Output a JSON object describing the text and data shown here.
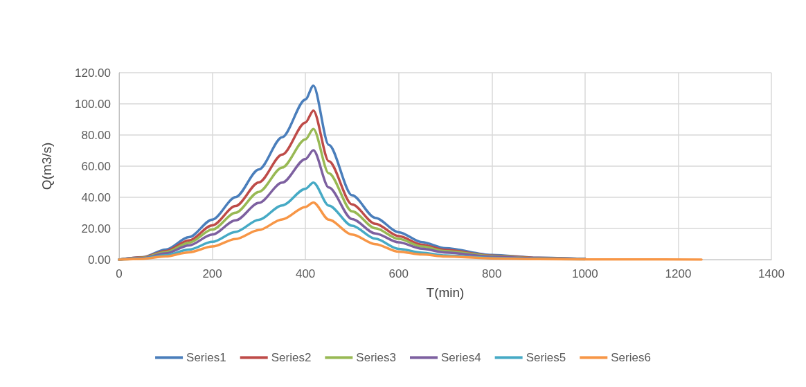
{
  "chart_data": {
    "type": "line",
    "xlabel": "T(min)",
    "ylabel": "Q(m3/s)",
    "x": [
      0,
      50,
      100,
      150,
      200,
      250,
      300,
      350,
      400,
      417,
      450,
      500,
      550,
      600,
      650,
      700,
      800,
      900,
      1000,
      1100,
      1250
    ],
    "series": [
      {
        "name": "Series1",
        "color": "#4a7ebb",
        "values": [
          0,
          1.6,
          6.4,
          14.4,
          25.7,
          40.1,
          57.9,
          78.6,
          102.8,
          111.7,
          73.7,
          41.3,
          26.8,
          17.6,
          11.2,
          7.3,
          3.0,
          1.2,
          0.4,
          null,
          null
        ]
      },
      {
        "name": "Series2",
        "color": "#be4b48",
        "values": [
          0,
          1.4,
          5.5,
          12.3,
          22.0,
          34.4,
          49.6,
          67.4,
          88.0,
          95.7,
          63.2,
          35.4,
          23.0,
          15.1,
          9.6,
          6.2,
          2.6,
          1.1,
          0.4,
          null,
          null
        ]
      },
      {
        "name": "Series3",
        "color": "#98b954",
        "values": [
          0,
          1.2,
          4.8,
          10.8,
          19.3,
          30.1,
          43.5,
          59.1,
          77.2,
          83.9,
          55.4,
          31.0,
          20.1,
          13.3,
          8.4,
          5.5,
          2.3,
          0.9,
          0.3,
          null,
          null
        ]
      },
      {
        "name": "Series4",
        "color": "#7d60a0",
        "values": [
          0,
          1.0,
          4.0,
          9.1,
          16.1,
          25.2,
          36.4,
          49.4,
          64.6,
          70.2,
          46.3,
          26.0,
          16.8,
          11.1,
          7.0,
          4.6,
          1.9,
          0.8,
          0.3,
          null,
          null
        ]
      },
      {
        "name": "Series5",
        "color": "#46aac5",
        "values": [
          0,
          0.7,
          2.8,
          6.4,
          11.4,
          17.8,
          25.6,
          34.8,
          45.5,
          49.5,
          34.7,
          21.8,
          13.4,
          6.9,
          4.5,
          2.7,
          1.1,
          0.4,
          0.2,
          null,
          null
        ]
      },
      {
        "name": "Series6",
        "color": "#f79646",
        "values": [
          0,
          0.5,
          2.1,
          4.7,
          8.4,
          13.2,
          19.0,
          25.8,
          33.8,
          36.7,
          25.7,
          16.1,
          9.9,
          5.1,
          3.3,
          2.0,
          0.8,
          0.3,
          0.1,
          0.1,
          0
        ]
      }
    ],
    "xlim": [
      0,
      1400
    ],
    "xticks": [
      0,
      200,
      400,
      600,
      800,
      1000,
      1200,
      1400
    ],
    "ylim": [
      0,
      120
    ],
    "yticks": [
      {
        "value": 0,
        "label": "0.00"
      },
      {
        "value": 20,
        "label": "20.00"
      },
      {
        "value": 40,
        "label": "40.00"
      },
      {
        "value": 60,
        "label": "60.00"
      },
      {
        "value": 80,
        "label": "80.00"
      },
      {
        "value": 100,
        "label": "100.00"
      },
      {
        "value": 120,
        "label": "120.00"
      }
    ],
    "grid": true,
    "legend": "bottom",
    "marker": "none",
    "line_style": "solid"
  }
}
